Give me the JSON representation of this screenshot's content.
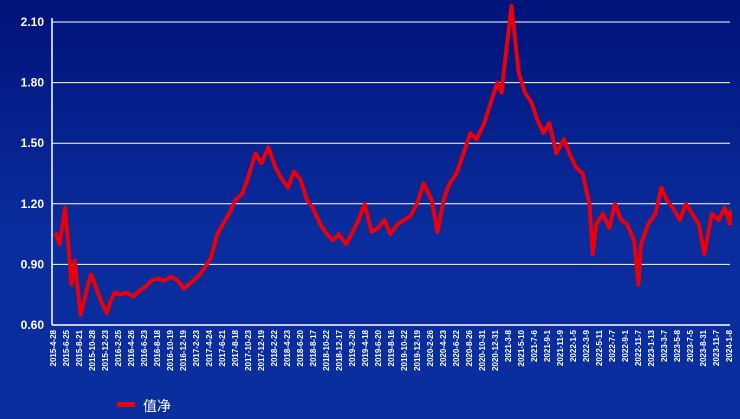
{
  "chart_data": {
    "type": "line",
    "title": "",
    "xlabel": "",
    "ylabel": "",
    "ylim": [
      0.6,
      2.1
    ],
    "yticks": [
      "0.60",
      "0.90",
      "1.20",
      "1.50",
      "1.80",
      "2.10"
    ],
    "grid": true,
    "legend_position": "bottom-left",
    "colors": {
      "series": "#e8000b",
      "background": "#0a2a9a",
      "grid": "#ffffff",
      "text": "#ffffff"
    },
    "x_tick_labels": [
      "2015-4-28",
      "2015-6-25",
      "2015-8-21",
      "2015-10-28",
      "2015-12-23",
      "2016-2-25",
      "2016-4-26",
      "2016-6-23",
      "2016-8-18",
      "2016-10-19",
      "2016-12-19",
      "2017-2-23",
      "2017-4-24",
      "2017-6-21",
      "2017-8-18",
      "2017-10-23",
      "2017-12-19",
      "2018-2-22",
      "2018-4-23",
      "2018-6-20",
      "2018-8-17",
      "2018-10-22",
      "2018-12-17",
      "2019-2-20",
      "2019-4-18",
      "2019-6-20",
      "2019-8-16",
      "2019-10-22",
      "2019-12-19",
      "2020-2-26",
      "2020-4-23",
      "2020-6-22",
      "2020-8-26",
      "2020-10-31",
      "2020-12-31",
      "2021-3-8",
      "2021-5-10",
      "2021-7-6",
      "2021-9-1",
      "2021-11-9",
      "2022-1-5",
      "2022-3-9",
      "2022-5-11",
      "2022-7-7",
      "2022-9-1",
      "2022-11-7",
      "2023-1-13",
      "2023-3-7",
      "2023-5-8",
      "2023-7-5",
      "2023-8-31",
      "2023-11-7",
      "2024-1-8"
    ],
    "series": [
      {
        "name": "值净",
        "x": [
          "2015-4-28",
          "2015-5-15",
          "2015-6-10",
          "2015-6-25",
          "2015-7-10",
          "2015-7-25",
          "2015-8-21",
          "2015-9-10",
          "2015-9-25",
          "2015-10-10",
          "2015-10-28",
          "2015-11-25",
          "2015-12-23",
          "2016-1-10",
          "2016-1-28",
          "2016-2-25",
          "2016-3-25",
          "2016-4-26",
          "2016-5-25",
          "2016-6-23",
          "2016-7-20",
          "2016-8-18",
          "2016-9-20",
          "2016-10-19",
          "2016-11-20",
          "2016-12-19",
          "2017-1-20",
          "2017-2-23",
          "2017-3-25",
          "2017-4-24",
          "2017-5-25",
          "2017-6-21",
          "2017-7-20",
          "2017-8-18",
          "2017-9-20",
          "2017-10-23",
          "2017-11-20",
          "2017-12-19",
          "2018-1-20",
          "2018-2-22",
          "2018-3-20",
          "2018-4-23",
          "2018-5-20",
          "2018-6-20",
          "2018-7-20",
          "2018-8-17",
          "2018-9-20",
          "2018-10-22",
          "2018-11-20",
          "2018-12-17",
          "2019-1-20",
          "2019-2-20",
          "2019-3-20",
          "2019-4-18",
          "2019-5-20",
          "2019-6-20",
          "2019-7-20",
          "2019-8-16",
          "2019-9-20",
          "2019-10-22",
          "2019-11-20",
          "2019-12-19",
          "2020-1-20",
          "2020-2-26",
          "2020-3-25",
          "2020-4-23",
          "2020-5-20",
          "2020-6-22",
          "2020-7-25",
          "2020-8-26",
          "2020-9-25",
          "2020-10-31",
          "2020-11-30",
          "2020-12-31",
          "2021-1-20",
          "2021-2-10",
          "2021-3-8",
          "2021-4-10",
          "2021-5-10",
          "2021-6-10",
          "2021-7-6",
          "2021-8-5",
          "2021-9-1",
          "2021-10-5",
          "2021-11-9",
          "2021-12-5",
          "2022-1-5",
          "2022-2-5",
          "2022-3-9",
          "2022-3-25",
          "2022-4-10",
          "2022-5-11",
          "2022-6-10",
          "2022-7-7",
          "2022-8-5",
          "2022-9-1",
          "2022-10-5",
          "2022-10-25",
          "2022-11-7",
          "2022-12-10",
          "2023-1-13",
          "2023-2-10",
          "2023-3-7",
          "2023-4-5",
          "2023-5-8",
          "2023-6-5",
          "2023-7-5",
          "2023-8-5",
          "2023-8-31",
          "2023-10-5",
          "2023-11-7",
          "2023-12-5",
          "2024-1-8",
          "2024-2-5"
        ],
        "values": [
          1.05,
          1.0,
          1.18,
          1.0,
          0.8,
          0.92,
          0.65,
          0.73,
          0.8,
          0.85,
          0.8,
          0.72,
          0.66,
          0.72,
          0.76,
          0.75,
          0.76,
          0.74,
          0.77,
          0.79,
          0.82,
          0.83,
          0.82,
          0.84,
          0.82,
          0.78,
          0.81,
          0.84,
          0.88,
          0.93,
          1.05,
          1.1,
          1.15,
          1.22,
          1.25,
          1.35,
          1.45,
          1.4,
          1.48,
          1.38,
          1.33,
          1.28,
          1.36,
          1.32,
          1.22,
          1.18,
          1.1,
          1.05,
          1.02,
          1.05,
          1.0,
          1.06,
          1.12,
          1.2,
          1.06,
          1.08,
          1.12,
          1.05,
          1.1,
          1.12,
          1.14,
          1.2,
          1.3,
          1.22,
          1.06,
          1.22,
          1.3,
          1.35,
          1.45,
          1.55,
          1.52,
          1.6,
          1.7,
          1.8,
          1.75,
          1.95,
          2.18,
          1.85,
          1.75,
          1.7,
          1.62,
          1.55,
          1.6,
          1.45,
          1.52,
          1.45,
          1.38,
          1.35,
          1.2,
          0.95,
          1.1,
          1.15,
          1.08,
          1.2,
          1.12,
          1.1,
          1.02,
          0.8,
          1.0,
          1.1,
          1.15,
          1.28,
          1.22,
          1.18,
          1.12,
          1.2,
          1.15,
          1.1,
          0.95,
          1.15,
          1.12,
          1.18,
          1.1,
          1.16
        ]
      }
    ]
  }
}
